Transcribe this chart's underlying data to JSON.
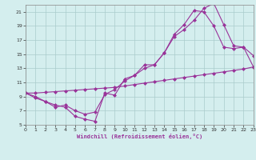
{
  "line1_x": [
    0,
    1,
    2,
    3,
    4,
    5,
    6,
    7,
    8,
    9,
    10,
    11,
    12,
    13,
    14,
    15,
    16,
    17,
    18,
    19,
    20,
    21,
    22,
    23
  ],
  "line1_y": [
    9.5,
    9.0,
    8.3,
    7.8,
    7.5,
    6.2,
    5.8,
    5.5,
    9.5,
    9.2,
    11.5,
    12.0,
    13.5,
    13.5,
    15.2,
    17.5,
    18.5,
    19.8,
    21.5,
    22.2,
    19.2,
    16.2,
    16.0,
    14.8
  ],
  "line2_x": [
    0,
    1,
    2,
    3,
    4,
    5,
    6,
    7,
    8,
    9,
    10,
    11,
    12,
    13,
    14,
    15,
    16,
    17,
    18,
    19,
    20,
    21,
    22,
    23
  ],
  "line2_y": [
    9.5,
    8.8,
    8.3,
    7.5,
    7.8,
    7.0,
    6.5,
    6.8,
    9.3,
    10.0,
    11.2,
    12.0,
    13.0,
    13.5,
    15.2,
    17.8,
    19.2,
    21.2,
    21.0,
    19.0,
    16.0,
    15.8,
    16.0,
    13.2
  ],
  "line3_x": [
    0,
    1,
    2,
    3,
    4,
    5,
    6,
    7,
    8,
    9,
    10,
    11,
    12,
    13,
    14,
    15,
    16,
    17,
    18,
    19,
    20,
    21,
    22,
    23
  ],
  "line3_y": [
    9.5,
    9.5,
    9.6,
    9.7,
    9.8,
    9.9,
    10.0,
    10.1,
    10.2,
    10.3,
    10.5,
    10.7,
    10.9,
    11.1,
    11.3,
    11.5,
    11.7,
    11.9,
    12.1,
    12.3,
    12.5,
    12.7,
    12.9,
    13.2
  ],
  "color": "#993399",
  "bg_color": "#d4eeee",
  "grid_color": "#aacccc",
  "xlabel": "Windchill (Refroidissement éolien,°C)",
  "xlim": [
    0,
    23
  ],
  "ylim": [
    5,
    22
  ],
  "xticks": [
    0,
    1,
    2,
    3,
    4,
    5,
    6,
    7,
    8,
    9,
    10,
    11,
    12,
    13,
    14,
    15,
    16,
    17,
    18,
    19,
    20,
    21,
    22,
    23
  ],
  "yticks": [
    5,
    7,
    9,
    11,
    13,
    15,
    17,
    19,
    21
  ],
  "marker": "D",
  "markersize": 2,
  "linewidth": 0.8
}
